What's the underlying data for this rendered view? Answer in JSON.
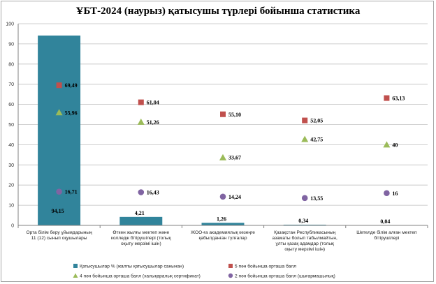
{
  "chart_data": {
    "type": "bar",
    "title": "ҰБТ-2024 (наурыз) қатысушы түрлері бойынша статистика",
    "ylim": [
      0,
      100
    ],
    "yticks": [
      0,
      10,
      20,
      30,
      40,
      50,
      60,
      70,
      80,
      90,
      100
    ],
    "grid": true,
    "legend_position": "bottom",
    "categories": [
      [
        "Орта білім беру ұйымдарының",
        "11 (12) сынып оқушылары"
      ],
      [
        "Өткен жылғы мектеп және",
        "колледж бітірушілері (толық",
        "оқыту мерзімі ішін)"
      ],
      [
        "ЖОО-ға академиялық кезеңге",
        "қабылданған түлғалар"
      ],
      [
        "Қазақстан Республикасының",
        "азаматы болып табылмайтын,",
        "ұлты қазақ адамдар (толық",
        "оқыту мерзімі ішін)"
      ],
      [
        "Шетелде білім алған мектеп",
        "бітірушілері"
      ]
    ],
    "series": [
      {
        "name": "Қатысушылар % (жалпы қатысушылар санынан)",
        "kind": "bar",
        "color": "#31849b",
        "values": [
          94.15,
          4.21,
          1.26,
          0.34,
          0.04
        ],
        "labels": [
          "94,15",
          "4,21",
          "1,26",
          "0,34",
          "0,04"
        ]
      },
      {
        "name": "5 пән бойынша орташа балл",
        "kind": "square",
        "color": "#c0504d",
        "values": [
          69.49,
          61.04,
          55.1,
          52.05,
          63.13
        ],
        "labels": [
          "69,49",
          "61,04",
          "55,10",
          "52,05",
          "63,13"
        ]
      },
      {
        "name": "4 пән бойынша орташа балл (халықаралық сертификат)",
        "kind": "triangle",
        "color": "#9bbb59",
        "values": [
          55.96,
          51.26,
          33.67,
          42.75,
          40
        ],
        "labels": [
          "55,96",
          "51,26",
          "33,67",
          "42,75",
          "40"
        ]
      },
      {
        "name": "2 пән бойынша орташа балл (шығармашылық)",
        "kind": "circle",
        "color": "#8064a2",
        "values": [
          16.71,
          16.43,
          14.24,
          13.55,
          16
        ],
        "labels": [
          "16,71",
          "16,43",
          "14,24",
          "13,55",
          "16"
        ]
      }
    ]
  }
}
